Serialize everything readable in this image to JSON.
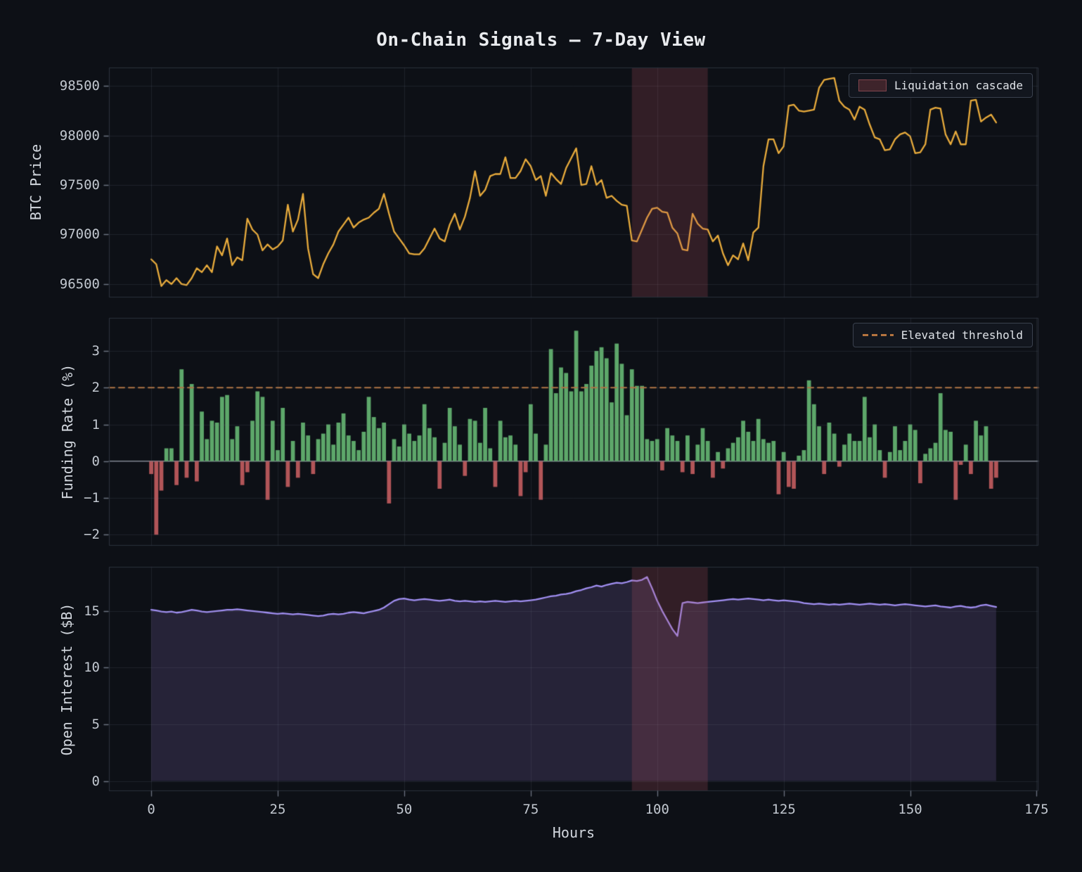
{
  "title": "On-Chain Signals — 7-Day View",
  "xaxis": {
    "label": "Hours",
    "ticks": [
      0,
      25,
      50,
      75,
      100,
      125,
      150,
      175
    ],
    "xlim": [
      -8.35,
      175.35
    ]
  },
  "highlight_span": {
    "from_hour": 95,
    "to_hour": 110,
    "label": "Liquidation cascade",
    "fill": "#b7525f",
    "alpha": 0.22
  },
  "chart_data": [
    {
      "panel": "btc_price",
      "type": "line",
      "ylabel": "BTC Price",
      "line_color": "#e8ab3c",
      "x_start": 0,
      "x_step": 1,
      "n_points": 168,
      "x_unit": "Hours",
      "yticks": [
        96500,
        97000,
        97500,
        98000,
        98500
      ],
      "ylim": [
        96365,
        98685
      ],
      "grid": true,
      "legend": {
        "label": "Liquidation cascade",
        "position": "upper right",
        "swatch": "patch"
      },
      "highlight_span": {
        "from_hour": 95,
        "to_hour": 110
      },
      "values": [
        96750,
        96700,
        96480,
        96540,
        96500,
        96560,
        96500,
        96490,
        96560,
        96660,
        96620,
        96690,
        96620,
        96880,
        96790,
        96960,
        96690,
        96770,
        96740,
        97160,
        97050,
        97000,
        96840,
        96900,
        96850,
        96880,
        96940,
        97300,
        97030,
        97150,
        97410,
        96860,
        96600,
        96560,
        96700,
        96810,
        96900,
        97030,
        97100,
        97170,
        97070,
        97120,
        97150,
        97170,
        97220,
        97260,
        97410,
        97210,
        97030,
        96960,
        96890,
        96810,
        96800,
        96800,
        96860,
        96960,
        97060,
        96960,
        96930,
        97100,
        97210,
        97050,
        97180,
        97370,
        97640,
        97390,
        97450,
        97590,
        97610,
        97610,
        97780,
        97570,
        97570,
        97640,
        97760,
        97690,
        97550,
        97590,
        97390,
        97620,
        97560,
        97510,
        97670,
        97770,
        97870,
        97500,
        97510,
        97690,
        97500,
        97550,
        97370,
        97390,
        97340,
        97300,
        97290,
        96940,
        96930,
        97050,
        97170,
        97260,
        97270,
        97230,
        97220,
        97070,
        97010,
        96850,
        96840,
        97210,
        97110,
        97060,
        97050,
        96930,
        96990,
        96810,
        96690,
        96790,
        96750,
        96910,
        96740,
        97020,
        97070,
        97690,
        97960,
        97960,
        97820,
        97890,
        98300,
        98310,
        98250,
        98240,
        98250,
        98260,
        98480,
        98560,
        98570,
        98580,
        98350,
        98290,
        98260,
        98160,
        98290,
        98260,
        98110,
        97980,
        97960,
        97850,
        97860,
        97960,
        98010,
        98030,
        97990,
        97820,
        97830,
        97910,
        98260,
        98280,
        98270,
        98010,
        97910,
        98040,
        97910,
        97910,
        98350,
        98360,
        98140,
        98180,
        98210,
        98130
      ]
    },
    {
      "panel": "funding_rate",
      "type": "bar",
      "ylabel": "Funding Rate (%)",
      "positive_color": "#5da76a",
      "negative_color": "#b25558",
      "x_start": 0,
      "x_step": 1,
      "n_points": 168,
      "x_unit": "Hours",
      "yticks": [
        -2,
        -1,
        0,
        1,
        2,
        3
      ],
      "ylim": [
        -2.3,
        3.9
      ],
      "grid": true,
      "threshold_line": {
        "y": 2,
        "style": "dashed",
        "color": "#b5743f",
        "label": "Elevated threshold"
      },
      "legend": {
        "label": "Elevated threshold",
        "position": "upper right",
        "swatch": "dashed-line"
      },
      "values": [
        -0.35,
        -2.0,
        -0.8,
        0.35,
        0.35,
        -0.65,
        2.5,
        -0.45,
        2.1,
        -0.55,
        1.35,
        0.6,
        1.1,
        1.05,
        1.75,
        1.8,
        0.6,
        0.95,
        -0.65,
        -0.3,
        1.1,
        1.9,
        1.75,
        -1.05,
        1.1,
        0.3,
        1.45,
        -0.7,
        0.55,
        -0.45,
        1.05,
        0.7,
        -0.35,
        0.6,
        0.75,
        1.0,
        0.45,
        1.05,
        1.3,
        0.7,
        0.55,
        0.3,
        0.8,
        1.75,
        1.2,
        0.9,
        1.05,
        -1.15,
        0.6,
        0.4,
        1.0,
        0.75,
        0.55,
        0.7,
        1.55,
        0.9,
        0.65,
        -0.75,
        0.5,
        1.45,
        0.95,
        0.45,
        -0.4,
        1.15,
        1.1,
        0.5,
        1.45,
        0.35,
        -0.7,
        1.1,
        0.65,
        0.7,
        0.45,
        -0.95,
        -0.3,
        1.55,
        0.75,
        -1.05,
        0.45,
        3.05,
        1.85,
        2.55,
        2.4,
        1.9,
        3.55,
        1.9,
        2.1,
        2.6,
        3.0,
        3.1,
        2.8,
        1.6,
        3.2,
        2.65,
        1.25,
        2.5,
        2.05,
        2.05,
        0.6,
        0.55,
        0.6,
        -0.25,
        0.9,
        0.7,
        0.55,
        -0.3,
        0.7,
        -0.35,
        0.45,
        0.9,
        0.55,
        -0.45,
        0.25,
        -0.2,
        0.35,
        0.5,
        0.65,
        1.1,
        0.8,
        0.55,
        1.15,
        0.6,
        0.5,
        0.55,
        -0.9,
        0.25,
        -0.7,
        -0.75,
        0.15,
        0.3,
        2.2,
        1.55,
        0.95,
        -0.35,
        1.05,
        0.75,
        -0.15,
        0.45,
        0.75,
        0.55,
        0.55,
        1.75,
        0.65,
        1.0,
        0.3,
        -0.45,
        0.25,
        0.95,
        0.3,
        0.55,
        1.0,
        0.85,
        -0.6,
        0.2,
        0.35,
        0.5,
        1.85,
        0.85,
        0.8,
        -1.05,
        -0.1,
        0.45,
        -0.35,
        1.1,
        0.7,
        0.95,
        -0.75,
        -0.45
      ]
    },
    {
      "panel": "open_interest",
      "type": "area",
      "ylabel": "Open Interest ($B)",
      "line_color": "#a18ff2",
      "fill_color": "#262338",
      "x_start": 0,
      "x_step": 1,
      "n_points": 168,
      "x_unit": "Hours",
      "yticks": [
        0,
        5,
        10,
        15
      ],
      "ylim": [
        -0.9,
        18.9
      ],
      "grid": true,
      "highlight_span": {
        "from_hour": 95,
        "to_hour": 110
      },
      "values": [
        15.1,
        15.05,
        14.95,
        14.9,
        14.95,
        14.85,
        14.9,
        15.0,
        15.1,
        15.05,
        14.95,
        14.9,
        14.95,
        15.0,
        15.05,
        15.1,
        15.1,
        15.15,
        15.1,
        15.05,
        15.0,
        14.95,
        14.9,
        14.85,
        14.8,
        14.75,
        14.8,
        14.75,
        14.7,
        14.75,
        14.7,
        14.65,
        14.6,
        14.55,
        14.6,
        14.7,
        14.75,
        14.7,
        14.75,
        14.85,
        14.9,
        14.85,
        14.8,
        14.9,
        15.0,
        15.1,
        15.3,
        15.6,
        15.9,
        16.05,
        16.1,
        16.0,
        15.95,
        16.0,
        16.05,
        16.0,
        15.95,
        15.9,
        15.95,
        16.0,
        15.9,
        15.85,
        15.9,
        15.85,
        15.8,
        15.85,
        15.8,
        15.85,
        15.9,
        15.85,
        15.8,
        15.85,
        15.9,
        15.85,
        15.9,
        15.95,
        16.0,
        16.1,
        16.2,
        16.3,
        16.35,
        16.45,
        16.5,
        16.6,
        16.75,
        16.85,
        17.0,
        17.1,
        17.25,
        17.15,
        17.3,
        17.4,
        17.5,
        17.45,
        17.55,
        17.7,
        17.65,
        17.75,
        18.0,
        17.0,
        15.9,
        15.0,
        14.2,
        13.4,
        12.8,
        15.7,
        15.8,
        15.75,
        15.7,
        15.75,
        15.8,
        15.85,
        15.9,
        15.95,
        16.0,
        16.05,
        16.0,
        16.05,
        16.1,
        16.05,
        16.0,
        15.95,
        16.0,
        15.95,
        15.9,
        15.95,
        15.9,
        15.85,
        15.8,
        15.7,
        15.65,
        15.6,
        15.65,
        15.6,
        15.55,
        15.6,
        15.55,
        15.6,
        15.65,
        15.6,
        15.55,
        15.6,
        15.65,
        15.6,
        15.55,
        15.6,
        15.55,
        15.5,
        15.55,
        15.6,
        15.55,
        15.5,
        15.45,
        15.4,
        15.45,
        15.5,
        15.4,
        15.35,
        15.3,
        15.4,
        15.45,
        15.35,
        15.3,
        15.35,
        15.5,
        15.55,
        15.45,
        15.35
      ]
    }
  ]
}
